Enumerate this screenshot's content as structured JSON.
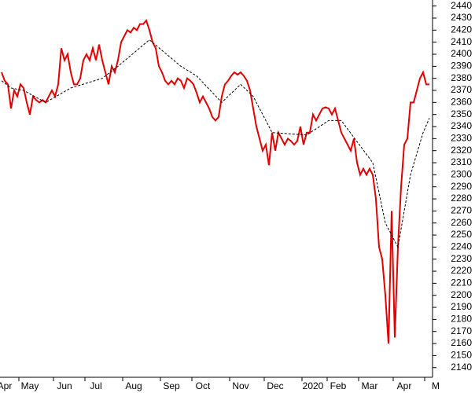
{
  "chart_data": {
    "type": "line",
    "categories": [
      null,
      "Apr",
      null,
      null,
      null,
      null,
      null,
      null,
      null,
      "May",
      null,
      null,
      null,
      null,
      null,
      null,
      null,
      null,
      null,
      null,
      "Jun",
      null,
      null,
      null,
      null,
      null,
      null,
      null,
      null,
      null,
      "Jul",
      null,
      null,
      null,
      null,
      null,
      null,
      null,
      null,
      null,
      null,
      null,
      "Aug",
      null,
      null,
      null,
      null,
      null,
      null,
      null,
      null,
      null,
      null,
      null,
      "Sep",
      null,
      null,
      null,
      null,
      null,
      null,
      null,
      null,
      null,
      "Oct",
      null,
      null,
      null,
      null,
      null,
      null,
      null,
      null,
      null,
      null,
      null,
      "Nov",
      null,
      null,
      null,
      null,
      null,
      null,
      null,
      null,
      null,
      null,
      "Dec",
      null,
      null,
      null,
      null,
      null,
      null,
      null,
      null,
      null,
      null,
      null,
      "2020",
      null,
      null,
      null,
      null,
      null,
      null,
      null,
      "Feb",
      null,
      null,
      null,
      null,
      null,
      null,
      null,
      null,
      null,
      "Mar",
      null,
      null,
      null,
      null,
      null,
      null,
      null,
      null,
      null,
      null,
      "Apr",
      null,
      null,
      null,
      null,
      null,
      null,
      null,
      null,
      null,
      "M"
    ],
    "series": [
      {
        "color": "#e00000",
        "values": [
          2385,
          2378,
          2375,
          2355,
          2370,
          2365,
          2375,
          2372,
          2360,
          2350,
          2365,
          2362,
          2360,
          2362,
          2360,
          2365,
          2370,
          2365,
          2375,
          2405,
          2395,
          2400,
          2385,
          2375,
          2375,
          2380,
          2395,
          2400,
          2395,
          2405,
          2395,
          2408,
          2395,
          2385,
          2375,
          2390,
          2385,
          2395,
          2410,
          2415,
          2420,
          2418,
          2422,
          2420,
          2425,
          2425,
          2428,
          2420,
          2410,
          2405,
          2390,
          2385,
          2378,
          2375,
          2378,
          2375,
          2380,
          2378,
          2372,
          2380,
          2378,
          2375,
          2368,
          2360,
          2365,
          2360,
          2355,
          2348,
          2345,
          2348,
          2365,
          2375,
          2378,
          2382,
          2385,
          2383,
          2385,
          2382,
          2378,
          2370,
          2355,
          2340,
          2330,
          2320,
          2325,
          2308,
          2335,
          2320,
          2335,
          2330,
          2325,
          2330,
          2328,
          2325,
          2328,
          2340,
          2325,
          2335,
          2335,
          2350,
          2345,
          2350,
          2355,
          2356,
          2355,
          2350,
          2355,
          2345,
          2335,
          2330,
          2325,
          2320,
          2330,
          2310,
          2300,
          2305,
          2300,
          2305,
          2300,
          2280,
          2240,
          2230,
          2200,
          2160,
          2270,
          2165,
          2240,
          2290,
          2325,
          2330,
          2360,
          2360,
          2370,
          2380,
          2385,
          2375,
          2375,
          null,
          null
        ]
      },
      {
        "color": "#000000",
        "dashed": true,
        "x": [
          0,
          3,
          7,
          14,
          22,
          32,
          37,
          47,
          57,
          62,
          70,
          76,
          80,
          86,
          97,
          104,
          108,
          118,
          122,
          126,
          130,
          134,
          136
        ],
        "values": [
          2378,
          2372,
          2370,
          2360,
          2372,
          2380,
          2390,
          2412,
          2390,
          2382,
          2360,
          2375,
          2365,
          2335,
          2333,
          2345,
          2345,
          2310,
          2260,
          2240,
          2300,
          2335,
          2347
        ]
      }
    ],
    "ylim": [
      2132,
      2445
    ],
    "yticks": [
      2140,
      2150,
      2160,
      2170,
      2180,
      2190,
      2200,
      2210,
      2220,
      2230,
      2240,
      2250,
      2260,
      2270,
      2280,
      2290,
      2300,
      2310,
      2320,
      2330,
      2340,
      2350,
      2360,
      2370,
      2380,
      2390,
      2400,
      2410,
      2420,
      2430,
      2440
    ]
  }
}
